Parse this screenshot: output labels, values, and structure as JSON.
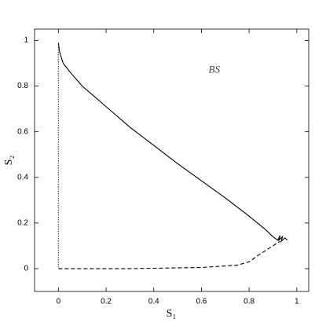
{
  "chart_data": {
    "type": "line",
    "x_label": "S₁",
    "y_label": "S₂",
    "annotation": {
      "text": "BS",
      "x": 0.63,
      "y": 0.87
    },
    "xlim": [
      -0.1,
      1.05
    ],
    "ylim": [
      -0.1,
      1.05
    ],
    "xticks": [
      0,
      0.2,
      0.4,
      0.6,
      0.8,
      1
    ],
    "yticks": [
      0,
      0.2,
      0.4,
      0.6,
      0.8,
      1
    ],
    "series": [
      {
        "color": "#000",
        "dash": "solid",
        "x": [
          0,
          0.005,
          0.02,
          0.05,
          0.1,
          0.2,
          0.3,
          0.4,
          0.5,
          0.6,
          0.7,
          0.8,
          0.87,
          0.9,
          0.92,
          0.93,
          0.925,
          0.94,
          0.935,
          0.95,
          0.96
        ],
        "values": [
          0.99,
          0.95,
          0.9,
          0.86,
          0.8,
          0.71,
          0.62,
          0.54,
          0.46,
          0.385,
          0.31,
          0.23,
          0.17,
          0.14,
          0.125,
          0.145,
          0.125,
          0.14,
          0.12,
          0.135,
          0.125
        ]
      },
      {
        "color": "#000",
        "dash": "dashed",
        "x": [
          0,
          0.3,
          0.6,
          0.75,
          0.8,
          0.84,
          0.87,
          0.9,
          0.93
        ],
        "values": [
          0,
          0,
          0.005,
          0.015,
          0.03,
          0.06,
          0.08,
          0.1,
          0.12
        ]
      },
      {
        "color": "#000",
        "dash": "dotted",
        "x": [
          0,
          0
        ],
        "values": [
          0.97,
          0
        ]
      }
    ]
  }
}
